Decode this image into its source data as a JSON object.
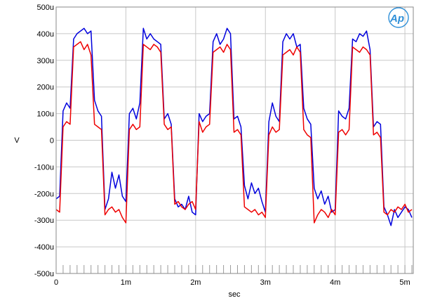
{
  "chart_data": {
    "type": "line",
    "title": "",
    "xlabel": "sec",
    "ylabel": "V",
    "xlim": [
      0,
      0.00512
    ],
    "ylim": [
      -0.0005,
      0.0005
    ],
    "grid": true,
    "legend": "none",
    "logo": "Ap",
    "x_ticks": [
      {
        "value": 0,
        "label": "0"
      },
      {
        "value": 0.001,
        "label": "1m"
      },
      {
        "value": 0.002,
        "label": "2m"
      },
      {
        "value": 0.003,
        "label": "3m"
      },
      {
        "value": 0.004,
        "label": "4m"
      },
      {
        "value": 0.005,
        "label": "5m"
      }
    ],
    "y_ticks": [
      {
        "value": 0.0005,
        "label": "500u"
      },
      {
        "value": 0.0004,
        "label": "400u"
      },
      {
        "value": 0.0003,
        "label": "300u"
      },
      {
        "value": 0.0002,
        "label": "200u"
      },
      {
        "value": 0.0001,
        "label": "100u"
      },
      {
        "value": 0,
        "label": "0"
      },
      {
        "value": -0.0001,
        "label": "-100u"
      },
      {
        "value": -0.0002,
        "label": "-200u"
      },
      {
        "value": -0.0003,
        "label": "-300u"
      },
      {
        "value": -0.0004,
        "label": "-400u"
      },
      {
        "value": -0.0005,
        "label": "-500u"
      }
    ],
    "series": [
      {
        "color": "#0000dd",
        "x": [
          0,
          5e-05,
          0.0001,
          0.00015,
          0.0002,
          0.00025,
          0.0003,
          0.00035,
          0.0004,
          0.00045,
          0.0005,
          0.00055,
          0.0006,
          0.00065,
          0.0007,
          0.00075,
          0.0008,
          0.00085,
          0.0009,
          0.00095,
          0.001,
          0.00105,
          0.0011,
          0.00115,
          0.0012,
          0.00125,
          0.0013,
          0.00135,
          0.0014,
          0.00145,
          0.0015,
          0.00155,
          0.0016,
          0.00165,
          0.0017,
          0.00175,
          0.0018,
          0.00185,
          0.0019,
          0.00195,
          0.002,
          0.00205,
          0.0021,
          0.00215,
          0.0022,
          0.00225,
          0.0023,
          0.00235,
          0.0024,
          0.00245,
          0.0025,
          0.00255,
          0.0026,
          0.00265,
          0.0027,
          0.00275,
          0.0028,
          0.00285,
          0.0029,
          0.00295,
          0.003,
          0.00305,
          0.0031,
          0.00315,
          0.0032,
          0.00325,
          0.0033,
          0.00335,
          0.0034,
          0.00345,
          0.0035,
          0.00355,
          0.0036,
          0.00365,
          0.0037,
          0.00375,
          0.0038,
          0.00385,
          0.0039,
          0.00395,
          0.004,
          0.00405,
          0.0041,
          0.00415,
          0.0042,
          0.00425,
          0.0043,
          0.00435,
          0.0044,
          0.00445,
          0.0045,
          0.00455,
          0.0046,
          0.00465,
          0.0047,
          0.00475,
          0.0048,
          0.00485,
          0.0049,
          0.00495,
          0.005,
          0.00505,
          0.0051
        ],
        "y": [
          -0.00022,
          -0.00021,
          0.00011,
          0.00014,
          0.00012,
          0.00038,
          0.0004,
          0.00041,
          0.00042,
          0.0004,
          0.00041,
          0.00015,
          0.00011,
          9e-05,
          -0.00026,
          -0.00022,
          -0.00012,
          -0.00018,
          -0.00013,
          -0.00021,
          -0.00023,
          0.0001,
          0.00012,
          8e-05,
          0.00014,
          0.00042,
          0.00038,
          0.0004,
          0.00038,
          0.00037,
          0.00036,
          8e-05,
          0.0001,
          6e-05,
          -0.00022,
          -0.00025,
          -0.00024,
          -0.00026,
          -0.00021,
          -0.00027,
          -0.00028,
          0.0001,
          7e-05,
          9e-05,
          0.0001,
          0.00037,
          0.0004,
          0.00036,
          0.00038,
          0.00042,
          0.0004,
          8e-05,
          9e-05,
          5e-05,
          -0.00017,
          -0.00022,
          -0.00016,
          -0.0002,
          -0.00018,
          -0.00023,
          -0.00027,
          7e-05,
          0.00014,
          9e-05,
          7e-05,
          0.00037,
          0.0004,
          0.00038,
          0.0004,
          0.00035,
          0.00036,
          0.00012,
          8e-05,
          6e-05,
          -0.00018,
          -0.00022,
          -0.00019,
          -0.00024,
          -0.00021,
          -0.00027,
          -0.00026,
          0.00011,
          9e-05,
          8e-05,
          0.00012,
          0.00038,
          0.00037,
          0.0004,
          0.00039,
          0.00041,
          0.00034,
          5e-05,
          7e-05,
          6e-05,
          -0.00025,
          -0.00028,
          -0.00032,
          -0.00026,
          -0.00029,
          -0.00027,
          -0.00025,
          -0.00026,
          -0.00029
        ]
      },
      {
        "color": "#ee0000",
        "x": [
          0,
          5e-05,
          0.0001,
          0.00015,
          0.0002,
          0.00025,
          0.0003,
          0.00035,
          0.0004,
          0.00045,
          0.0005,
          0.00055,
          0.0006,
          0.00065,
          0.0007,
          0.00075,
          0.0008,
          0.00085,
          0.0009,
          0.00095,
          0.001,
          0.00105,
          0.0011,
          0.00115,
          0.0012,
          0.00125,
          0.0013,
          0.00135,
          0.0014,
          0.00145,
          0.0015,
          0.00155,
          0.0016,
          0.00165,
          0.0017,
          0.00175,
          0.0018,
          0.00185,
          0.0019,
          0.00195,
          0.002,
          0.00205,
          0.0021,
          0.00215,
          0.0022,
          0.00225,
          0.0023,
          0.00235,
          0.0024,
          0.00245,
          0.0025,
          0.00255,
          0.0026,
          0.00265,
          0.0027,
          0.00275,
          0.0028,
          0.00285,
          0.0029,
          0.00295,
          0.003,
          0.00305,
          0.0031,
          0.00315,
          0.0032,
          0.00325,
          0.0033,
          0.00335,
          0.0034,
          0.00345,
          0.0035,
          0.00355,
          0.0036,
          0.00365,
          0.0037,
          0.00375,
          0.0038,
          0.00385,
          0.0039,
          0.00395,
          0.004,
          0.00405,
          0.0041,
          0.00415,
          0.0042,
          0.00425,
          0.0043,
          0.00435,
          0.0044,
          0.00445,
          0.0045,
          0.00455,
          0.0046,
          0.00465,
          0.0047,
          0.00475,
          0.0048,
          0.00485,
          0.0049,
          0.00495,
          0.005,
          0.00505,
          0.0051
        ],
        "y": [
          -0.00026,
          -0.00027,
          5e-05,
          7e-05,
          6e-05,
          0.00035,
          0.00036,
          0.00037,
          0.00034,
          0.00036,
          0.00032,
          6e-05,
          5e-05,
          4e-05,
          -0.00028,
          -0.00026,
          -0.00025,
          -0.00027,
          -0.00026,
          -0.00029,
          -0.00031,
          4e-05,
          6e-05,
          4e-05,
          5e-05,
          0.00036,
          0.00035,
          0.00034,
          0.00036,
          0.00035,
          0.00033,
          6e-05,
          4e-05,
          5e-05,
          -0.00024,
          -0.00023,
          -0.00025,
          -0.00026,
          -0.00024,
          -0.00023,
          -0.00026,
          7e-05,
          3e-05,
          5e-05,
          6e-05,
          0.00033,
          0.00034,
          0.00035,
          0.00033,
          0.00036,
          0.00034,
          3e-05,
          4e-05,
          2e-05,
          -0.00025,
          -0.00026,
          -0.00027,
          -0.00026,
          -0.00028,
          -0.00027,
          -0.00029,
          2e-05,
          5e-05,
          3e-05,
          4e-05,
          0.00032,
          0.00033,
          0.00034,
          0.00032,
          0.00035,
          0.00033,
          4e-05,
          2e-05,
          1e-05,
          -0.00031,
          -0.00028,
          -0.00026,
          -0.00027,
          -0.00029,
          -0.00026,
          -0.00028,
          3e-05,
          4e-05,
          2e-05,
          4e-05,
          0.00035,
          0.00034,
          0.00033,
          0.00035,
          0.00034,
          0.00032,
          2e-05,
          3e-05,
          1e-05,
          -0.00027,
          -0.00028,
          -0.00026,
          -0.00027,
          -0.00025,
          -0.00026,
          -0.00024,
          -0.00027,
          -0.00026
        ]
      }
    ]
  }
}
